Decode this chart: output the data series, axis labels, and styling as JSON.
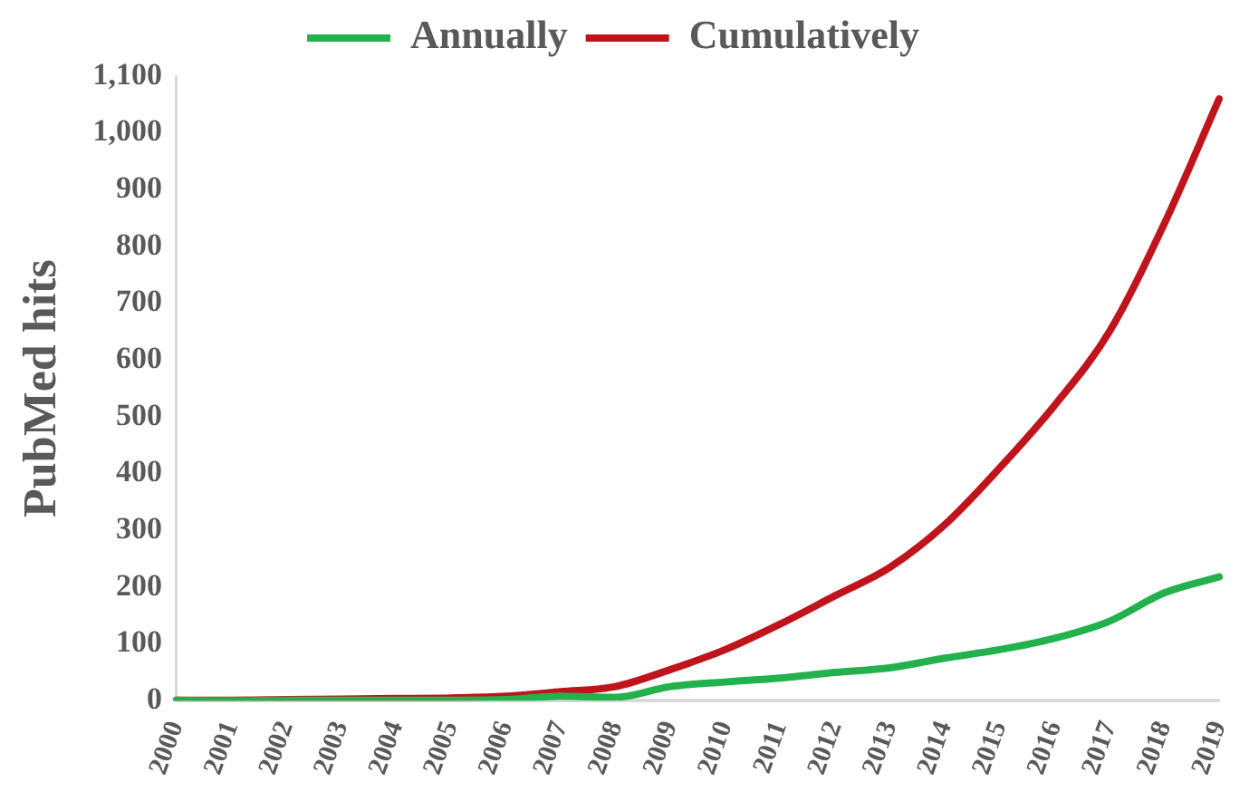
{
  "chart_data": {
    "type": "line",
    "ylabel": "PubMed hits",
    "categories": [
      "2000",
      "2001",
      "2002",
      "2003",
      "2004",
      "2005",
      "2006",
      "2007",
      "2008",
      "2009",
      "2010",
      "2011",
      "2012",
      "2013",
      "2014",
      "2015",
      "2016",
      "2017",
      "2018",
      "2019"
    ],
    "series": [
      {
        "name": "Annually",
        "color": "#22b14c",
        "values": [
          1,
          0,
          1,
          1,
          1,
          1,
          2,
          8,
          6,
          25,
          33,
          40,
          50,
          58,
          75,
          90,
          110,
          140,
          190,
          218
        ]
      },
      {
        "name": "Cumulatively",
        "color": "#c0141c",
        "values": [
          1,
          1,
          2,
          3,
          4,
          5,
          8,
          16,
          25,
          55,
          90,
          135,
          185,
          235,
          310,
          410,
          520,
          650,
          840,
          1060
        ]
      }
    ],
    "ylim": [
      0,
      1100
    ],
    "yticks": [
      {
        "value": 0,
        "label": "0"
      },
      {
        "value": 100,
        "label": "100"
      },
      {
        "value": 200,
        "label": "200"
      },
      {
        "value": 300,
        "label": "300"
      },
      {
        "value": 400,
        "label": "400"
      },
      {
        "value": 500,
        "label": "500"
      },
      {
        "value": 600,
        "label": "600"
      },
      {
        "value": 700,
        "label": "700"
      },
      {
        "value": 800,
        "label": "800"
      },
      {
        "value": 900,
        "label": "900"
      },
      {
        "value": 1000,
        "label": "1,000"
      },
      {
        "value": 1100,
        "label": "1,100"
      }
    ],
    "grid": false,
    "legend": "top",
    "marker": "none",
    "line_style": "solid"
  }
}
